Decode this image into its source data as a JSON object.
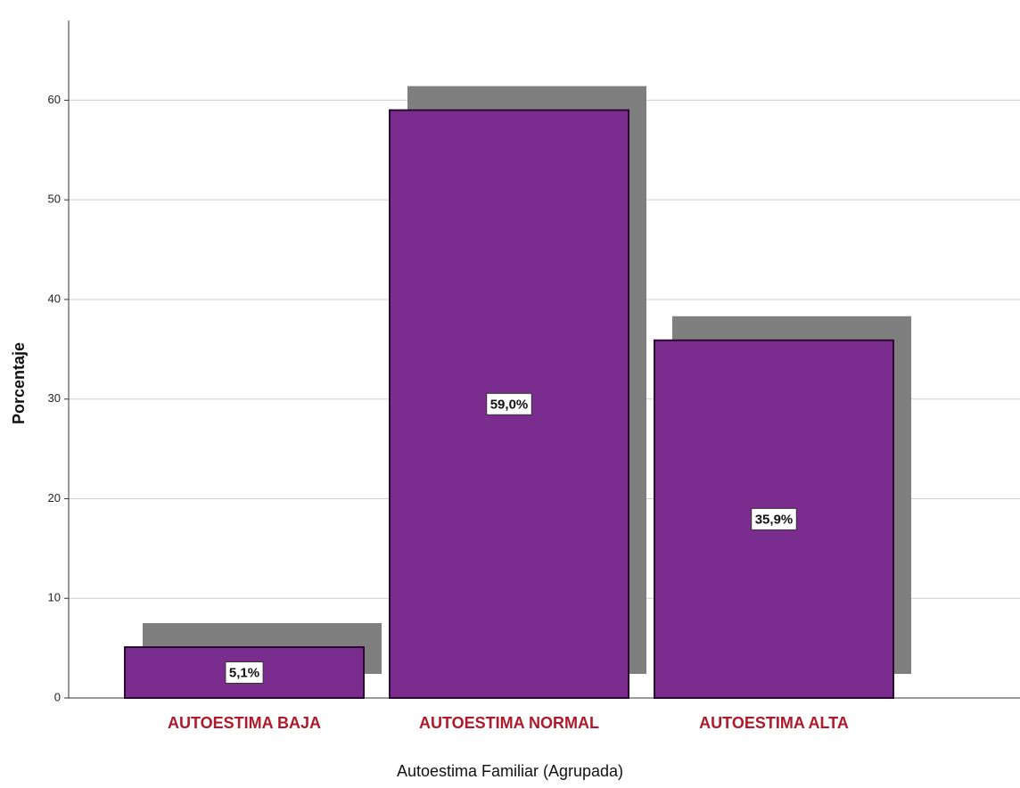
{
  "chart_data": {
    "type": "bar",
    "categories": [
      "AUTOESTIMA BAJA",
      "AUTOESTIMA NORMAL",
      "AUTOESTIMA ALTA"
    ],
    "values": [
      5.1,
      59.0,
      35.9
    ],
    "value_labels": [
      "5,1%",
      "59,0%",
      "35,9%"
    ],
    "color": "#7b2c8f",
    "x_label": "Autoestima Familiar (Agrupada)",
    "y_label": "Porcentaje",
    "ylim": [
      0,
      68
    ],
    "yticks": [
      0,
      10,
      20,
      30,
      40,
      50,
      60
    ],
    "grid": true
  }
}
